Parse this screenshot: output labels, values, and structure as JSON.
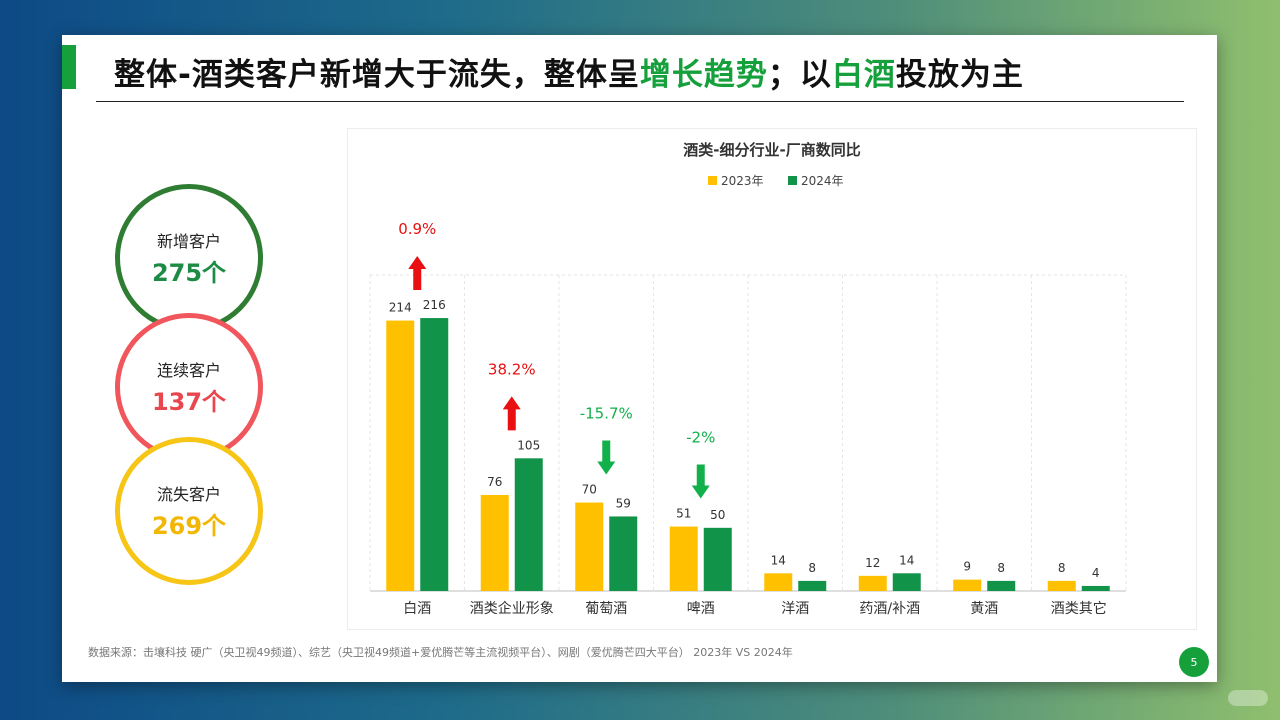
{
  "title": {
    "part1": "整体-酒类客户新增大于流失，整体呈",
    "highlight1": "增长趋势",
    "part2": "；以",
    "highlight2": "白酒",
    "part3": "投放为主"
  },
  "colors": {
    "green": "#15a03c",
    "yellow": "#ffc000",
    "up_red": "#e81010",
    "down_green": "#12b04a"
  },
  "kpis": [
    {
      "label": "新增客户",
      "value": "275个"
    },
    {
      "label": "连续客户",
      "value": "137个"
    },
    {
      "label": "流失客户",
      "value": "269个"
    }
  ],
  "chart_data": {
    "type": "bar",
    "title": "酒类-细分行业-厂商数同比",
    "categories": [
      "白酒",
      "酒类企业形象",
      "葡萄酒",
      "啤酒",
      "洋酒",
      "药酒/补酒",
      "黄酒",
      "酒类其它"
    ],
    "series": [
      {
        "name": "2023年",
        "color": "#ffc000",
        "values": [
          214,
          76,
          70,
          51,
          14,
          12,
          9,
          8
        ]
      },
      {
        "name": "2024年",
        "color": "#12934a",
        "values": [
          216,
          105,
          59,
          50,
          8,
          14,
          8,
          4
        ]
      }
    ],
    "annotations": [
      {
        "category": "白酒",
        "text": "0.9%",
        "direction": "up"
      },
      {
        "category": "酒类企业形象",
        "text": "38.2%",
        "direction": "up"
      },
      {
        "category": "葡萄酒",
        "text": "-15.7%",
        "direction": "down"
      },
      {
        "category": "啤酒",
        "text": "-2%",
        "direction": "down"
      }
    ],
    "ylim": [
      0,
      220
    ],
    "legend_position": "top-center",
    "grid": false
  },
  "footer": {
    "source": "数据来源：击壤科技  硬广（央卫视49频道）、综艺（央卫视49频道+爱优腾芒等主流视频平台）、网剧（爱优腾芒四大平台）  2023年 VS 2024年",
    "page": "5"
  }
}
